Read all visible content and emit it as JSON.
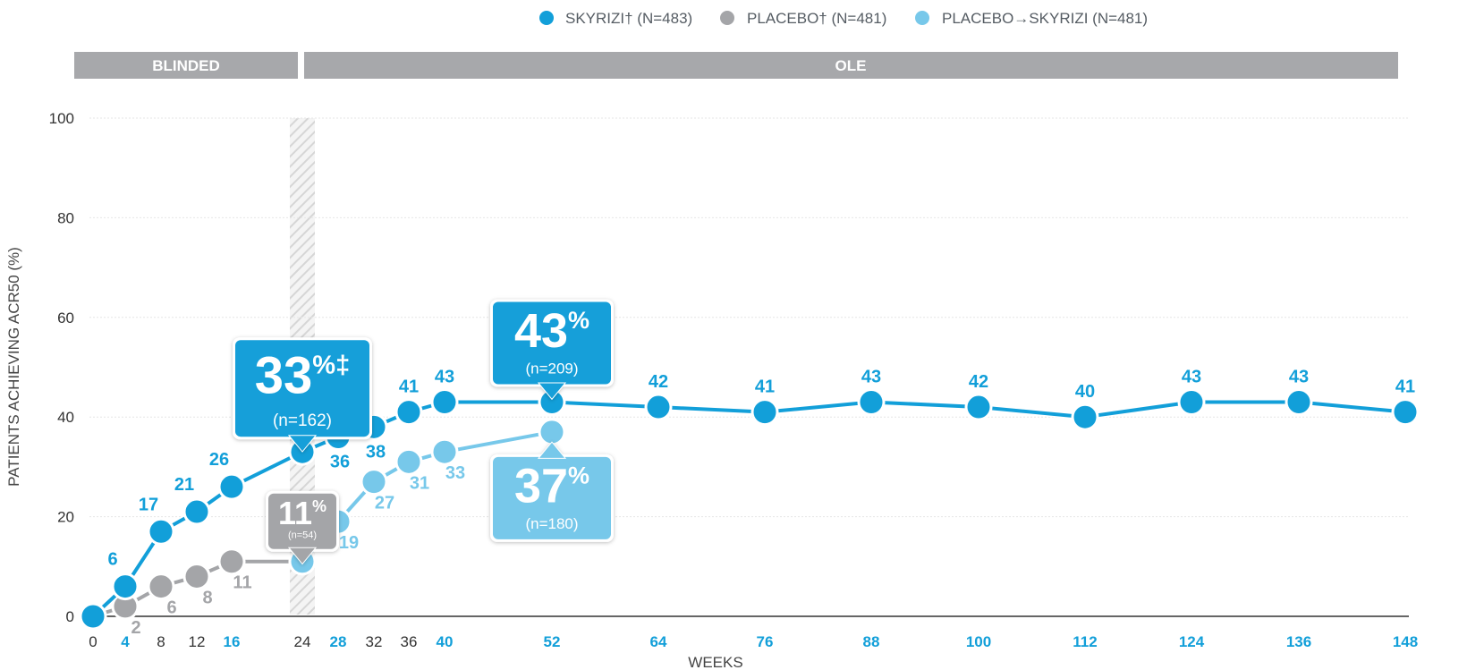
{
  "colors": {
    "skyrizi": "#129fd9",
    "placebo": "#a4a5a8",
    "placebo_to_skyrizi": "#77c8ea",
    "phase_bar": "#a7a8ab",
    "axis": "#333333",
    "grid": "#e6e6e6"
  },
  "legend": [
    {
      "label": "SKYRIZI† (N=483)",
      "color": "#129fd9"
    },
    {
      "label": "PLACEBO† (N=481)",
      "color": "#a4a5a8"
    },
    {
      "label": "PLACEBO→SKYRIZI (N=481)",
      "color": "#77c8ea"
    }
  ],
  "phases": [
    {
      "label": "BLINDED"
    },
    {
      "label": "OLE"
    }
  ],
  "callouts": [
    {
      "series": "skyrizi",
      "week": 24,
      "value_text": "33",
      "suffix": "%‡",
      "n_text": "(n=162)"
    },
    {
      "series": "placebo",
      "week": 24,
      "value_text": "11",
      "suffix": "%",
      "n_text": "(n=54)"
    },
    {
      "series": "skyrizi",
      "week": 52,
      "value_text": "43",
      "suffix": "%",
      "n_text": "(n=209)"
    },
    {
      "series": "placebo_to_skyrizi",
      "week": 52,
      "value_text": "37",
      "suffix": "%",
      "n_text": "(n=180)"
    }
  ],
  "chart_data": {
    "type": "line",
    "title": "",
    "xlabel": "WEEKS",
    "ylabel": "PATIENTS ACHIEVING ACR50 (%)",
    "ylim": [
      0,
      100
    ],
    "yticks": [
      0,
      20,
      40,
      60,
      80,
      100
    ],
    "xticks": [
      0,
      4,
      8,
      12,
      16,
      24,
      28,
      32,
      36,
      40,
      52,
      64,
      76,
      88,
      100,
      112,
      124,
      136,
      148
    ],
    "xtick_highlight": [
      4,
      16,
      28,
      40,
      52,
      64,
      76,
      88,
      100,
      112,
      124,
      136,
      148
    ],
    "blinded_end_week": 24,
    "series": [
      {
        "key": "skyrizi",
        "name": "SKYRIZI† (N=483)",
        "x": [
          0,
          4,
          8,
          12,
          16,
          24,
          28,
          32,
          36,
          40,
          52,
          64,
          76,
          88,
          100,
          112,
          124,
          136,
          148
        ],
        "values": [
          0,
          6,
          17,
          21,
          26,
          33,
          36,
          38,
          41,
          43,
          43,
          42,
          41,
          43,
          42,
          40,
          43,
          43,
          41
        ],
        "labels": [
          "",
          "6",
          "17",
          "21",
          "26",
          "",
          "36",
          "38",
          "41",
          "43",
          "",
          "42",
          "41",
          "43",
          "42",
          "40",
          "43",
          "43",
          "41"
        ]
      },
      {
        "key": "placebo",
        "name": "PLACEBO† (N=481)",
        "x": [
          0,
          4,
          8,
          12,
          16,
          24
        ],
        "values": [
          0,
          2,
          6,
          8,
          11,
          11
        ],
        "labels": [
          "",
          "2",
          "6",
          "8",
          "11",
          ""
        ]
      },
      {
        "key": "placebo_to_skyrizi",
        "name": "PLACEBO→SKYRIZI (N=481)",
        "x": [
          24,
          28,
          32,
          36,
          40,
          52
        ],
        "values": [
          11,
          19,
          27,
          31,
          33,
          37
        ],
        "labels": [
          "",
          "19",
          "27",
          "31",
          "33",
          ""
        ]
      }
    ]
  }
}
